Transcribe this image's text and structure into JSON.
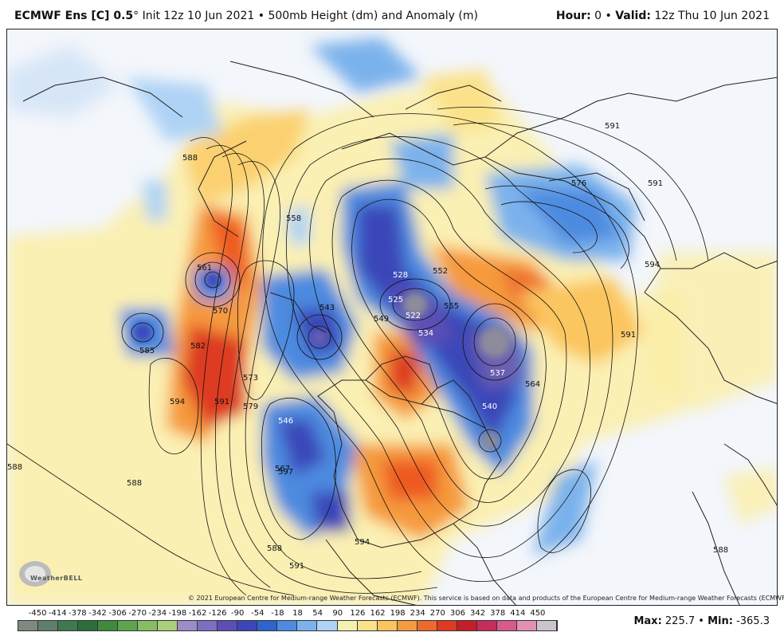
{
  "header": {
    "model": "ECMWF Ens [C] 0.5",
    "degree": "°",
    "init": "Init 12z 10 Jun 2021",
    "bullet": "•",
    "field": "500mb Height (dm) and Anomaly (m)",
    "hour_label": "Hour:",
    "hour_value": "0",
    "valid_label": "Valid:",
    "valid_value": "12z Thu 10 Jun 2021"
  },
  "credit": "© 2021 European Centre for Medium-range Weather Forecasts (ECMWF). This service is based on data and products of the European Centre for Medium-range Weather Forecasts (ECMWF).",
  "logo": {
    "text": "WeatherBELL",
    "icon": "weatherbell-logo"
  },
  "colorbar": {
    "ticks": [
      "-450",
      "-414",
      "-378",
      "-342",
      "-306",
      "-270",
      "-234",
      "-198",
      "-162",
      "-126",
      "-90",
      "-54",
      "-18",
      "18",
      "54",
      "90",
      "126",
      "162",
      "198",
      "234",
      "270",
      "306",
      "342",
      "378",
      "414",
      "450"
    ],
    "colors": [
      "#7e8a80",
      "#5f7f6a",
      "#3f7a4f",
      "#2d6e3a",
      "#3f8a3e",
      "#5fa34e",
      "#86bd63",
      "#a9cf7b",
      "#9d8cc7",
      "#7d6fc0",
      "#5b4fb5",
      "#3b46b8",
      "#2e63d0",
      "#4e8be0",
      "#7cb2ec",
      "#aed3f5",
      "#f5f2b0",
      "#fbe28a",
      "#fbc55e",
      "#f59a3e",
      "#ee6a2c",
      "#dd3a22",
      "#c21f2a",
      "#c72d5c",
      "#d65a8c",
      "#e291b5",
      "#ccc4cc"
    ]
  },
  "stats": {
    "max_label": "Max:",
    "max_value": "225.7",
    "bullet": "•",
    "min_label": "Min:",
    "min_value": "-365.3"
  },
  "contour_labels": [
    "588",
    "591",
    "594",
    "576",
    "561",
    "570",
    "582",
    "585",
    "528",
    "525",
    "522",
    "534",
    "537",
    "540",
    "543",
    "546",
    "549",
    "552",
    "555",
    "558",
    "564",
    "567",
    "573",
    "579",
    "597"
  ]
}
